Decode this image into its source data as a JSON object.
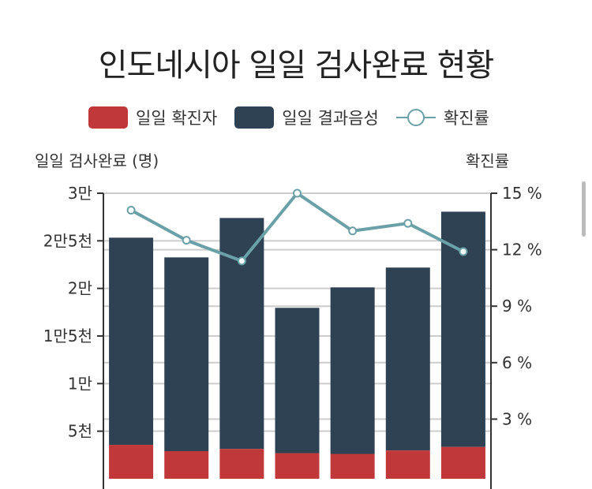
{
  "chart_data": {
    "type": "bar",
    "title": "인도네시아 일일 검사완료 현황",
    "ylabel": "일일 검사완료 (명)",
    "y2label": "확진률",
    "legend": [
      {
        "name": "일일 확진자",
        "color": "#c0383a"
      },
      {
        "name": "일일 결과음성",
        "color": "#2f4254"
      },
      {
        "name": "확진률",
        "color": "#6aa1a8"
      }
    ],
    "ylim": [
      0,
      30000
    ],
    "y2lim": [
      0,
      15
    ],
    "yticks": [
      {
        "v": 5000,
        "t": "5천"
      },
      {
        "v": 10000,
        "t": "1만"
      },
      {
        "v": 15000,
        "t": "1만5천"
      },
      {
        "v": 20000,
        "t": "2만"
      },
      {
        "v": 25000,
        "t": "2만5천"
      },
      {
        "v": 30000,
        "t": "3만"
      }
    ],
    "y2ticks": [
      {
        "v": 3,
        "t": "3 %"
      },
      {
        "v": 6,
        "t": "6 %"
      },
      {
        "v": 9,
        "t": "9 %"
      },
      {
        "v": 12,
        "t": "12 %"
      },
      {
        "v": 15,
        "t": "15 %"
      }
    ],
    "series": [
      {
        "name": "일일 확진자",
        "values": [
          3560,
          2900,
          3130,
          2690,
          2610,
          2970,
          3340
        ]
      },
      {
        "name": "일일 결과음성",
        "values": [
          21770,
          20360,
          24270,
          15270,
          17500,
          19220,
          24720
        ]
      },
      {
        "name": "확진률",
        "axis": "right",
        "values": [
          14.1,
          12.5,
          11.4,
          15.0,
          13.0,
          13.4,
          11.9
        ]
      }
    ],
    "grid": true
  }
}
